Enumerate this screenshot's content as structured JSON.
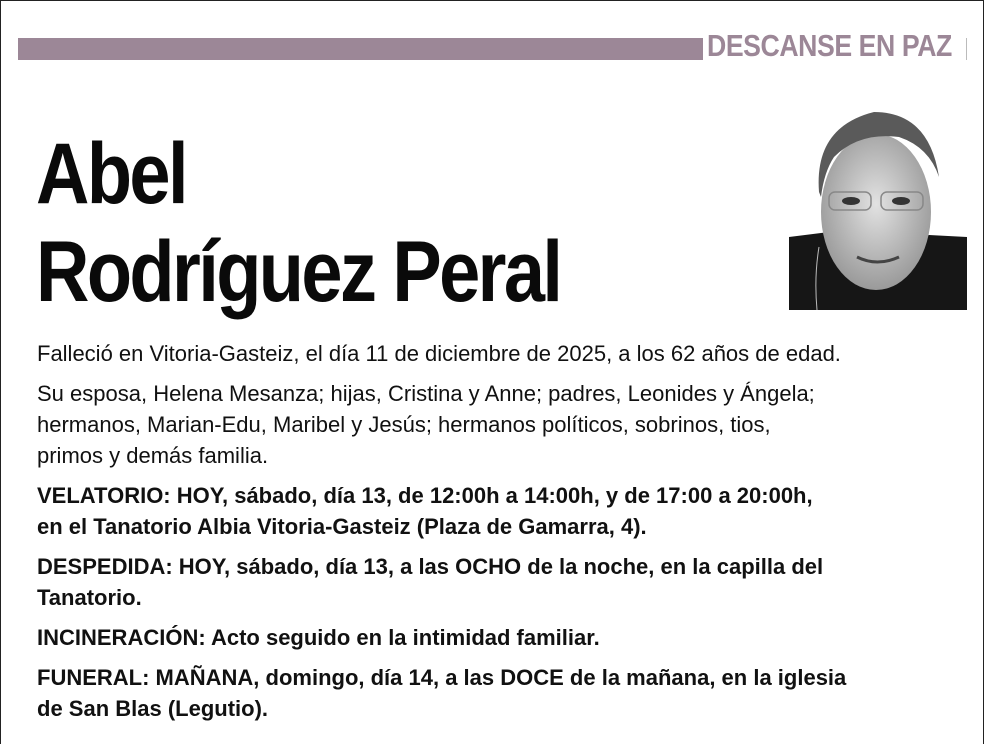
{
  "header": {
    "section_title": "DESCANSE EN PAZ",
    "accent_color": "#9c8797"
  },
  "name": {
    "line1": "Abel",
    "line2": "Rodríguez Peral"
  },
  "photo": {
    "alt": "portrait photo"
  },
  "paragraphs": [
    {
      "bold": false,
      "lines": [
        "Falleció en Vitoria-Gasteiz, el día 11 de diciembre de 2025, a los 62 años de edad."
      ]
    },
    {
      "bold": false,
      "lines": [
        "Su esposa, Helena Mesanza; hijas, Cristina y Anne; padres, Leonides y Ángela;",
        "hermanos, Marian-Edu, Maribel y Jesús; hermanos políticos,  sobrinos, tios,",
        "primos y demás familia."
      ]
    },
    {
      "bold": true,
      "lines": [
        "VELATORIO: HOY, sábado, día 13, de 12:00h a 14:00h, y de 17:00 a 20:00h,",
        "en el Tanatorio Albia Vitoria-Gasteiz (Plaza de Gamarra, 4)."
      ]
    },
    {
      "bold": true,
      "lines": [
        "DESPEDIDA: HOY, sábado, día 13, a las OCHO de la noche, en la capilla del",
        "Tanatorio."
      ]
    },
    {
      "bold": true,
      "lines": [
        "INCINERACIÓN: Acto seguido en la intimidad familiar."
      ]
    },
    {
      "bold": true,
      "lines": [
        "FUNERAL: MAÑANA, domingo, día 14, a las DOCE de la mañana, en la iglesia",
        "de San Blas (Legutio)."
      ]
    }
  ]
}
